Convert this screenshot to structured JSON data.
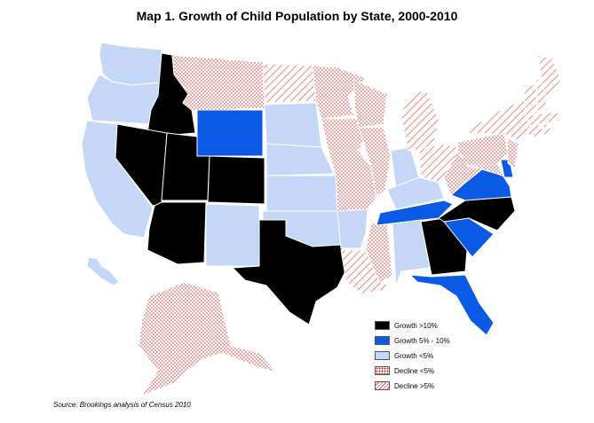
{
  "title": "Map 1. Growth of Child Population by State, 2000-2010",
  "source": "Source: Brookings analysis of Census 2010",
  "colors": {
    "growth_gt_10": "#000000",
    "growth_5_10": "#0a5ae6",
    "growth_lt_5": "#c4d7f7",
    "decline_lt_5": "#d42020",
    "decline_gt_5": "#e05050"
  },
  "legend": [
    {
      "key": "growth_gt_10",
      "label": "Growth >10%",
      "fill": "solid-black"
    },
    {
      "key": "growth_5_10",
      "label": "Growth 5% - 10%",
      "fill": "solid-blue"
    },
    {
      "key": "growth_lt_5",
      "label": "Growth <5%",
      "fill": "solid-lightblue"
    },
    {
      "key": "decline_lt_5",
      "label": "Decline <5%",
      "fill": "red-dots"
    },
    {
      "key": "decline_gt_5",
      "label": "Decline >5%",
      "fill": "red-hatch"
    }
  ],
  "states": {
    "WA": "growth_lt_5",
    "OR": "growth_lt_5",
    "CA": "growth_lt_5",
    "HI": "growth_lt_5",
    "ID": "growth_gt_10",
    "NV": "growth_gt_10",
    "UT": "growth_gt_10",
    "AZ": "growth_gt_10",
    "CO": "growth_gt_10",
    "TX": "growth_gt_10",
    "GA": "growth_gt_10",
    "NC": "growth_gt_10",
    "WY": "growth_5_10",
    "SC": "growth_5_10",
    "TN": "growth_5_10",
    "VA": "growth_5_10",
    "FL": "growth_5_10",
    "DE": "growth_5_10",
    "MT": "decline_lt_5",
    "ND": "decline_gt_5",
    "SD": "growth_lt_5",
    "NE": "growth_lt_5",
    "KS": "growth_lt_5",
    "OK": "growth_lt_5",
    "NM": "growth_lt_5",
    "MN": "decline_lt_5",
    "IA": "decline_lt_5",
    "MO": "decline_lt_5",
    "AR": "growth_lt_5",
    "LA": "decline_gt_5",
    "MS": "decline_lt_5",
    "AL": "growth_lt_5",
    "WI": "decline_lt_5",
    "IL": "decline_lt_5",
    "IN": "growth_lt_5",
    "KY": "growth_lt_5",
    "MI": "decline_gt_5",
    "OH": "decline_gt_5",
    "WV": "decline_lt_5",
    "PA": "decline_lt_5",
    "NY": "decline_gt_5",
    "NJ": "decline_lt_5",
    "MD": "decline_lt_5",
    "ME": "decline_gt_5",
    "NH": "decline_gt_5",
    "VT": "decline_gt_5",
    "MA": "decline_gt_5",
    "CT": "decline_gt_5",
    "RI": "decline_gt_5",
    "AK": "decline_lt_5"
  }
}
